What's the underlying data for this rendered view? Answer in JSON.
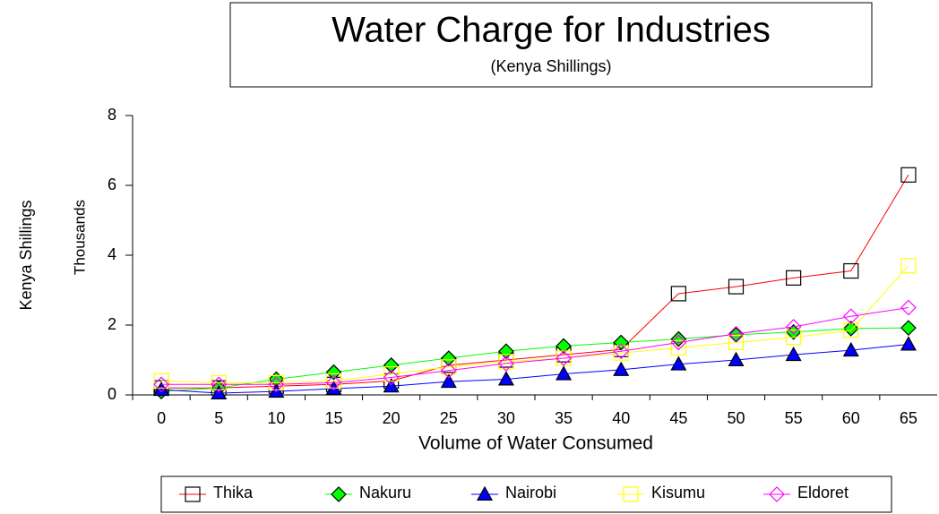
{
  "chart_data": {
    "type": "line",
    "title": "Water Charge for Industries",
    "subtitle": "(Kenya Shillings)",
    "ylabel": "Kenya Shillings",
    "yunit": "Thousands",
    "xlabel": "Volume of Water Consumed",
    "categories": [
      "0",
      "5",
      "10",
      "15",
      "20",
      "25",
      "30",
      "35",
      "40",
      "45",
      "50",
      "55",
      "60",
      "65"
    ],
    "ylim": [
      0,
      8
    ],
    "yticks": [
      0,
      2,
      4,
      6,
      8
    ],
    "legend": "bottom",
    "series": [
      {
        "name": "Thika",
        "color": "#ff0000",
        "marker": "square",
        "marker_color": "#000000",
        "marker_fill": "none",
        "values": [
          0.2,
          0.2,
          0.25,
          0.3,
          0.4,
          0.85,
          1.0,
          1.15,
          1.3,
          2.9,
          3.1,
          3.35,
          3.55,
          6.3
        ]
      },
      {
        "name": "Nakuru",
        "color": "#00ff00",
        "marker": "diamond",
        "marker_color": "#000000",
        "marker_fill": "#00ff00",
        "values": [
          0.1,
          0.2,
          0.45,
          0.65,
          0.85,
          1.05,
          1.25,
          1.4,
          1.5,
          1.6,
          1.72,
          1.8,
          1.9,
          1.92
        ]
      },
      {
        "name": "Nairobi",
        "color": "#0000ff",
        "marker": "triangle",
        "marker_color": "#000000",
        "marker_fill": "#0000ff",
        "values": [
          0.15,
          0.05,
          0.1,
          0.18,
          0.25,
          0.38,
          0.45,
          0.6,
          0.72,
          0.88,
          1.0,
          1.15,
          1.28,
          1.45
        ]
      },
      {
        "name": "Kisumu",
        "color": "#ffff00",
        "marker": "square",
        "marker_color": "#ffff00",
        "marker_fill": "none",
        "values": [
          0.4,
          0.35,
          0.35,
          0.4,
          0.6,
          0.8,
          0.95,
          1.05,
          1.2,
          1.35,
          1.5,
          1.65,
          1.85,
          3.7
        ]
      },
      {
        "name": "Eldoret",
        "color": "#ff00ff",
        "marker": "diamond",
        "marker_color": "#ff00ff",
        "marker_fill": "none",
        "values": [
          0.3,
          0.3,
          0.3,
          0.35,
          0.5,
          0.7,
          0.9,
          1.05,
          1.25,
          1.5,
          1.75,
          1.95,
          2.25,
          2.5
        ]
      }
    ]
  }
}
